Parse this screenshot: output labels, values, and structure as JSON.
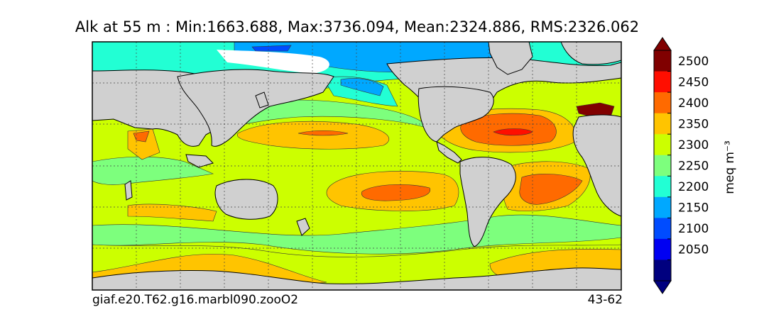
{
  "title": "Alk at 55 m : Min:1663.688, Max:3736.094, Mean:2324.886, RMS:2326.062",
  "run_id": "giaf.e20.T62.g16.marbl090.zooO2",
  "years": "43-62",
  "colorbar": {
    "unit_label": "meq m⁻³",
    "ticks": [
      "2500",
      "2450",
      "2400",
      "2350",
      "2300",
      "2250",
      "2200",
      "2150",
      "2100",
      "2050"
    ],
    "colors_top_to_bottom": [
      "#800000",
      "#ff0e00",
      "#ff6a00",
      "#ffc400",
      "#ccff00",
      "#7dff7d",
      "#22ffd4",
      "#00a8ff",
      "#004cff",
      "#0000f2",
      "#00007f"
    ],
    "extend": "both"
  },
  "map": {
    "land_color": "#d0d0d0",
    "missing_color": "#ffffff",
    "projection": "global lat-lon, Pacific-centred",
    "gridlines": "dashed"
  }
}
